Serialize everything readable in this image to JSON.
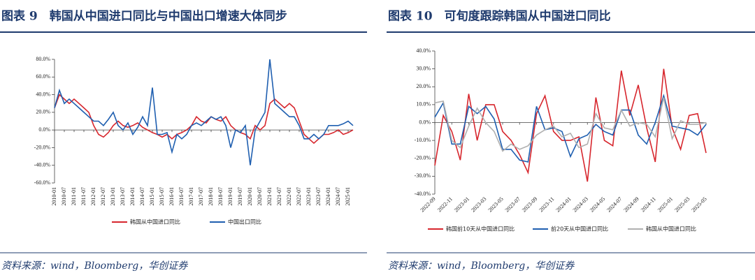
{
  "chart_data": [
    {
      "type": "line",
      "title": "图表 9　韩国从中国进口同比与中国出口增速大体同步",
      "source": "资料来源：wind，Bloomberg，华创证券",
      "categories": [
        "2010-01",
        null,
        "2010-07",
        null,
        "2011-01",
        null,
        "2011-07",
        null,
        "2012-01",
        null,
        "2012-07",
        null,
        "2013-01",
        null,
        "2013-07",
        null,
        "2014-01",
        null,
        "2014-07",
        null,
        "2015-01",
        null,
        "2015-07",
        null,
        "2016-01",
        null,
        "2016-07",
        null,
        "2017-01",
        null,
        "2017-07",
        null,
        "2018-01",
        null,
        "2018-07",
        null,
        "2019-01",
        null,
        "2019-07",
        null,
        "2020-01",
        null,
        "2020-07",
        null,
        "2021-01",
        null,
        "2021-07",
        null,
        "2022-01",
        null,
        "2022-07",
        null,
        "2023-01",
        null,
        "2023-07",
        null,
        "2024-01",
        null,
        "2024-07",
        null,
        "2025-01",
        null
      ],
      "series": [
        {
          "name": "韩国从中国进口同比",
          "color": "#d7262d",
          "values": [
            25,
            40,
            35,
            30,
            35,
            30,
            25,
            20,
            5,
            -5,
            -8,
            -3,
            5,
            10,
            5,
            3,
            5,
            8,
            3,
            0,
            -3,
            -5,
            -8,
            -5,
            -10,
            -5,
            -3,
            0,
            5,
            15,
            10,
            8,
            15,
            12,
            10,
            15,
            5,
            0,
            -3,
            -5,
            -10,
            5,
            0,
            5,
            30,
            35,
            30,
            25,
            30,
            25,
            10,
            -5,
            -10,
            -15,
            -10,
            -5,
            -5,
            -3,
            0,
            -5,
            -3,
            0
          ]
        },
        {
          "name": "中国出口同比",
          "color": "#1f5fb0",
          "values": [
            25,
            45,
            30,
            35,
            30,
            25,
            20,
            15,
            10,
            10,
            5,
            12,
            20,
            5,
            0,
            8,
            -5,
            3,
            15,
            5,
            48,
            -5,
            -5,
            -3,
            -25,
            -5,
            -10,
            -5,
            5,
            8,
            5,
            10,
            15,
            12,
            15,
            5,
            -20,
            0,
            -3,
            5,
            -40,
            0,
            10,
            20,
            80,
            30,
            25,
            20,
            15,
            15,
            5,
            -10,
            -10,
            -5,
            -10,
            -5,
            5,
            5,
            5,
            7,
            10,
            5
          ]
        }
      ],
      "ylim": [
        -60,
        80
      ],
      "yticks": [
        {
          "value": 80,
          "label": "80.0%"
        },
        {
          "value": 60,
          "label": "60.0%"
        },
        {
          "value": 40,
          "label": "40.0%"
        },
        {
          "value": 20,
          "label": "20.0%"
        },
        {
          "value": 0,
          "label": "0.0%"
        },
        {
          "value": -20,
          "label": "-20.0%"
        },
        {
          "value": -40,
          "label": "-40.0%"
        },
        {
          "value": -60,
          "label": "-60.0%"
        }
      ]
    },
    {
      "type": "line",
      "title": "图表 10　可旬度跟踪韩国从中国进口同比",
      "source": "资料来源：wind，Bloomberg，华创证券",
      "categories": [
        "2022-09",
        null,
        "2022-11",
        null,
        "2023-01",
        null,
        "2023-03",
        null,
        "2023-05",
        null,
        "2023-07",
        null,
        "2023-09",
        null,
        "2023-11",
        null,
        "2024-01",
        null,
        "2024-03",
        null,
        "2024-05",
        null,
        "2024-07",
        null,
        "2024-09",
        null,
        "2024-11",
        null,
        "2025-01",
        null,
        "2025-03",
        null,
        "2025-05"
      ],
      "series": [
        {
          "name": "韩国前10天从中国进口同比",
          "color": "#d7262d",
          "values": [
            -24,
            4,
            -5,
            -21,
            16,
            -10,
            10,
            10,
            -5,
            -10,
            -18,
            -28,
            5,
            15,
            -5,
            -10,
            -10,
            -8,
            -33,
            14,
            -10,
            -13,
            29,
            4,
            21,
            -3,
            -22,
            30,
            -3,
            -15,
            4,
            5,
            -17
          ]
        },
        {
          "name": "前20天从中国进口同比",
          "color": "#1f5fb0",
          "values": [
            3,
            11,
            -12,
            -12,
            9,
            5,
            9,
            2,
            -15,
            -15,
            -21,
            -22,
            9,
            -4,
            -3,
            -5,
            -19,
            -9,
            -7,
            -1,
            -5,
            -7,
            7,
            7,
            -7,
            -12,
            0,
            15,
            -2,
            -3,
            -4,
            -7,
            -1
          ]
        },
        {
          "name": "韩国从中国进口同比",
          "color": "#b0b0b0",
          "values": [
            11,
            12,
            -10,
            -14,
            -2,
            8,
            0,
            -5,
            -16,
            -12,
            -15,
            -13,
            -7,
            -4,
            -2,
            -8,
            -6,
            -14,
            -12,
            5,
            -3,
            -4,
            7,
            -2,
            0,
            -1,
            -8,
            14,
            -9,
            1,
            -1,
            -1,
            0
          ]
        }
      ],
      "ylim": [
        -40,
        40
      ],
      "yticks": [
        {
          "value": 40,
          "label": "40.0%"
        },
        {
          "value": 30,
          "label": "30.0%"
        },
        {
          "value": 20,
          "label": "20.0%"
        },
        {
          "value": 10,
          "label": "10.0%"
        },
        {
          "value": 0,
          "label": "0.0%"
        },
        {
          "value": -10,
          "label": "-10.0%"
        },
        {
          "value": -20,
          "label": "-20.0%"
        },
        {
          "value": -30,
          "label": "-30.0%"
        },
        {
          "value": -40,
          "label": "-40.0%"
        }
      ]
    }
  ]
}
